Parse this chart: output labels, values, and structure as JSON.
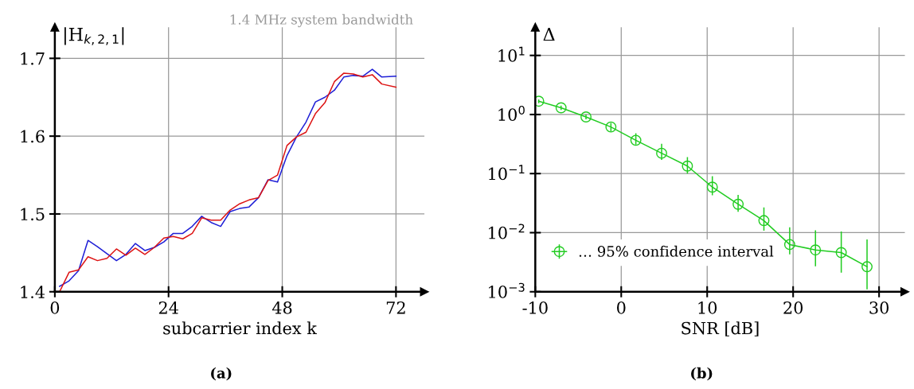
{
  "chart_data": [
    {
      "type": "line",
      "ylabel": "|H$_{k,2,1}$|",
      "xlabel": "subcarrier index k",
      "annotations": [
        "1.4 MHz system bandwidth",
        "(a)"
      ],
      "x": [
        1,
        3,
        5,
        7,
        9,
        11,
        13,
        15,
        17,
        19,
        21,
        23,
        25,
        27,
        29,
        31,
        33,
        35,
        37,
        39,
        41,
        43,
        45,
        47,
        49,
        51,
        53,
        55,
        57,
        59,
        61,
        63,
        65,
        67,
        69,
        72
      ],
      "series": [
        {
          "color": "#1f1fd6",
          "values": [
            1.407,
            1.414,
            1.427,
            1.466,
            1.458,
            1.449,
            1.44,
            1.448,
            1.462,
            1.453,
            1.457,
            1.464,
            1.475,
            1.475,
            1.484,
            1.497,
            1.489,
            1.484,
            1.503,
            1.507,
            1.509,
            1.521,
            1.544,
            1.541,
            1.575,
            1.599,
            1.618,
            1.644,
            1.65,
            1.659,
            1.676,
            1.678,
            1.677,
            1.686,
            1.676,
            1.677
          ]
        },
        {
          "color": "#dd1414",
          "values": [
            1.4,
            1.425,
            1.428,
            1.445,
            1.44,
            1.443,
            1.455,
            1.447,
            1.456,
            1.448,
            1.457,
            1.469,
            1.471,
            1.468,
            1.475,
            1.495,
            1.492,
            1.492,
            1.505,
            1.513,
            1.518,
            1.521,
            1.543,
            1.55,
            1.588,
            1.599,
            1.605,
            1.629,
            1.643,
            1.67,
            1.681,
            1.68,
            1.676,
            1.679,
            1.667,
            1.663
          ]
        }
      ],
      "xlim": [
        0,
        78
      ],
      "ylim": [
        1.4,
        1.74
      ],
      "xticks": [
        0,
        24,
        48,
        72
      ],
      "yticks": [
        1.4,
        1.5,
        1.6,
        1.7
      ],
      "grid": true,
      "legend": false
    },
    {
      "type": "line",
      "ylabel": "Δ",
      "xlabel": "SNR [dB]",
      "log": "y",
      "marker": "circle",
      "annotations": [
        "(b)"
      ],
      "x": [
        -9.6,
        -7.0,
        -4.1,
        -1.2,
        1.7,
        4.7,
        7.7,
        10.6,
        13.6,
        16.6,
        19.6,
        22.6,
        25.6,
        28.6
      ],
      "series": [
        {
          "name": "… 95% confidence interval",
          "color": "#22cc22",
          "values": [
            1.68,
            1.3,
            0.91,
            0.615,
            0.366,
            0.221,
            0.134,
            0.059,
            0.0303,
            0.016,
            0.0063,
            0.0051,
            0.0046,
            0.00265
          ],
          "errors": [
            [
              1.55,
              1.8
            ],
            [
              1.19,
              1.41
            ],
            [
              0.83,
              1.0
            ],
            [
              0.52,
              0.72
            ],
            [
              0.31,
              0.48
            ],
            [
              0.17,
              0.32
            ],
            [
              0.1,
              0.19
            ],
            [
              0.043,
              0.09
            ],
            [
              0.0225,
              0.0437
            ],
            [
              0.0108,
              0.0268
            ],
            [
              0.0043,
              0.0123
            ],
            [
              0.0027,
              0.011
            ],
            [
              0.0021,
              0.0105
            ],
            [
              0.0011,
              0.0077
            ]
          ]
        }
      ],
      "xlim": [
        -10,
        33
      ],
      "ylim": [
        0.001,
        30
      ],
      "xticks": [
        {
          "value": -10,
          "label": "-10"
        },
        0,
        10,
        20,
        30
      ],
      "yticks": [
        {
          "value": 0.001,
          "label": "10$^{−3}$"
        },
        {
          "value": 0.01,
          "label": "10$^{−2}$"
        },
        {
          "value": 0.1,
          "label": "10$^{−1}$"
        },
        {
          "value": 1,
          "label": "10$^{0}$"
        },
        {
          "value": 10,
          "label": "10$^{1}$"
        }
      ],
      "grid": true,
      "legend": "bottom left"
    }
  ]
}
